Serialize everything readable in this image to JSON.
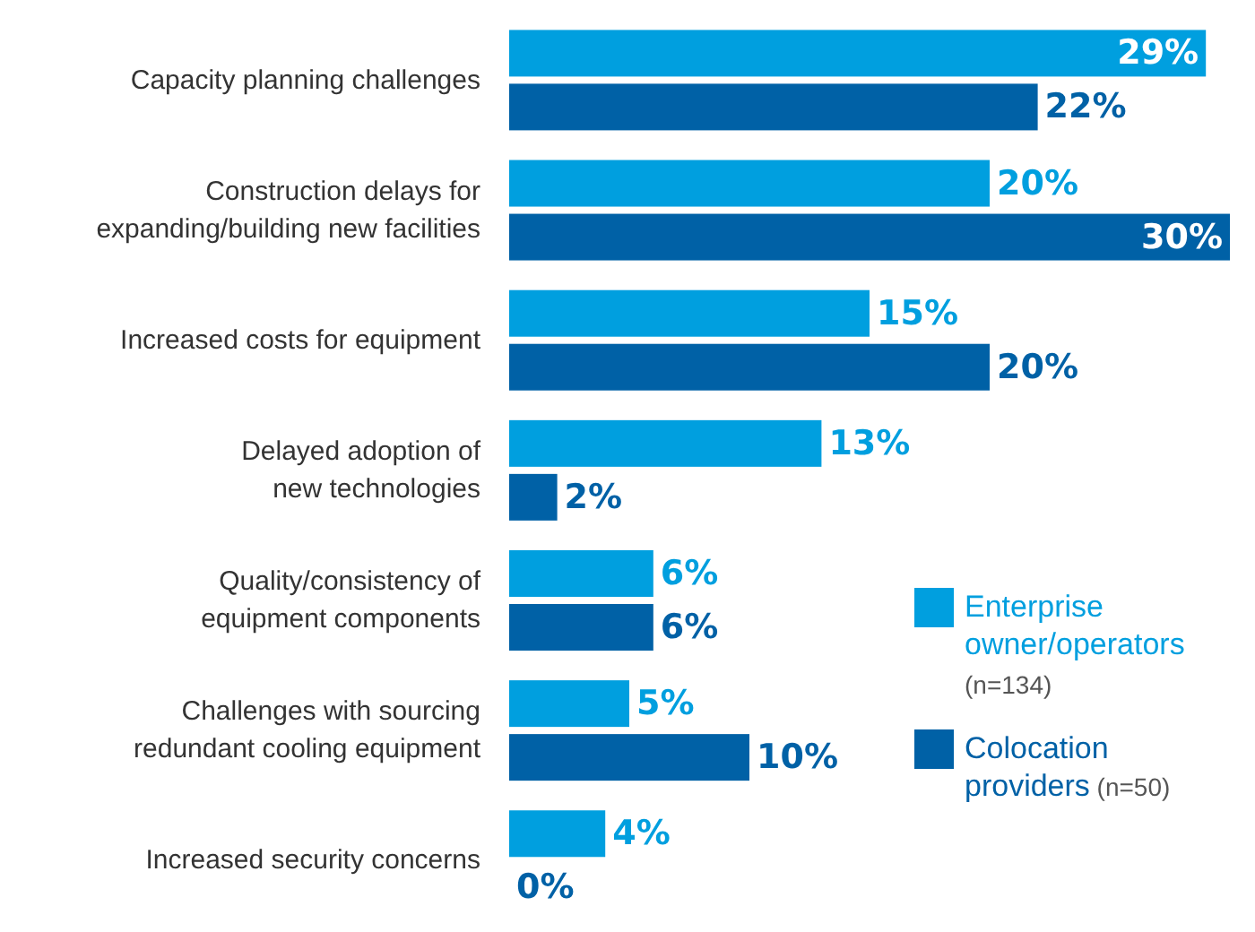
{
  "chart_data": {
    "type": "bar",
    "orientation": "horizontal",
    "legend": "right",
    "categories": [
      "Capacity planning challenges",
      "Construction delays for expanding/building new facilities",
      "Increased costs for equipment",
      "Delayed adoption of new technologies",
      "Quality/consistency of equipment components",
      "Challenges with sourcing redundant cooling equipment",
      "Increased security concerns"
    ],
    "series": [
      {
        "name": "Enterprise owner/operators (n=134)",
        "color": "#009fdf",
        "values": [
          29,
          20,
          15,
          13,
          6,
          5,
          4
        ],
        "value_labels": [
          "29%",
          "20%",
          "15%",
          "13%",
          "6%",
          "5%",
          "4%"
        ]
      },
      {
        "name": "Colocation providers (n=50)",
        "color": "#0061a6",
        "values": [
          22,
          30,
          20,
          2,
          6,
          10,
          0
        ],
        "value_labels": [
          "22%",
          "30%",
          "20%",
          "2%",
          "6%",
          "10%",
          "0%"
        ]
      }
    ]
  }
}
